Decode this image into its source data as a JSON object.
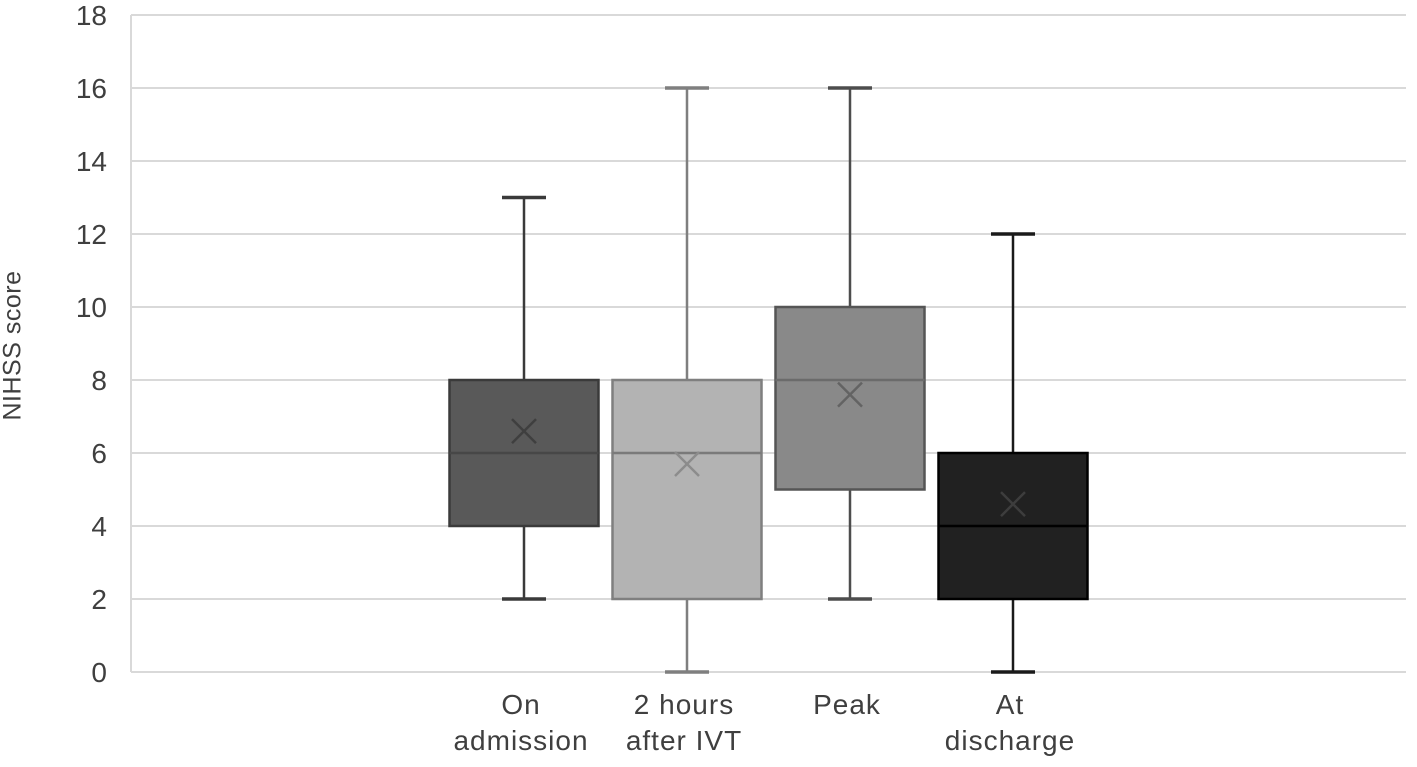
{
  "chart_data": {
    "type": "boxplot",
    "title": "",
    "ylabel": "NIHSS score",
    "xlabel": "",
    "ylim": [
      0,
      18
    ],
    "yticks": [
      0,
      2,
      4,
      6,
      8,
      10,
      12,
      14,
      16,
      18
    ],
    "grid": true,
    "legend": "none",
    "categories": [
      "On admission",
      "2 hours after IVT",
      "Peak",
      "At discharge"
    ],
    "series": [
      {
        "category": "On admission",
        "label_lines": [
          "On",
          "admission"
        ],
        "whisker_low": 2,
        "q1": 4,
        "median": 6,
        "q3": 8,
        "whisker_high": 13,
        "mean": 6.6,
        "fill": "#595959",
        "stroke": "#3a3a3a",
        "whisker_color": "#3a3a3a",
        "median_color": "#474747",
        "mean_color": "#3f3f3f"
      },
      {
        "category": "2 hours after IVT",
        "label_lines": [
          "2 hours",
          "after IVT"
        ],
        "whisker_low": 0,
        "q1": 2,
        "median": 6,
        "q3": 8,
        "whisker_high": 16,
        "mean": 5.7,
        "fill": "#b3b3b3",
        "stroke": "#7f7f7f",
        "whisker_color": "#7f7f7f",
        "median_color": "#7a7a7a",
        "mean_color": "#8c8c8c"
      },
      {
        "category": "Peak",
        "label_lines": [
          "Peak"
        ],
        "whisker_low": 2,
        "q1": 5,
        "median": 8,
        "q3": 10,
        "whisker_high": 16,
        "mean": 7.6,
        "fill": "#898989",
        "stroke": "#555555",
        "whisker_color": "#4d4d4d",
        "median_color": "#6b6b6b",
        "mean_color": "#636363"
      },
      {
        "category": "At discharge",
        "label_lines": [
          "At",
          "discharge"
        ],
        "whisker_low": 0,
        "q1": 2,
        "median": 4,
        "q3": 6,
        "whisker_high": 12,
        "mean": 4.6,
        "fill": "#212121",
        "stroke": "#000000",
        "whisker_color": "#1a1a1a",
        "median_color": "#000000",
        "mean_color": "#3d3d3d"
      }
    ],
    "colors": {
      "background": "#ffffff",
      "gridline": "#d9d9d9",
      "axis_line": "#d9d9d9",
      "text": "#3f3f3f"
    }
  }
}
